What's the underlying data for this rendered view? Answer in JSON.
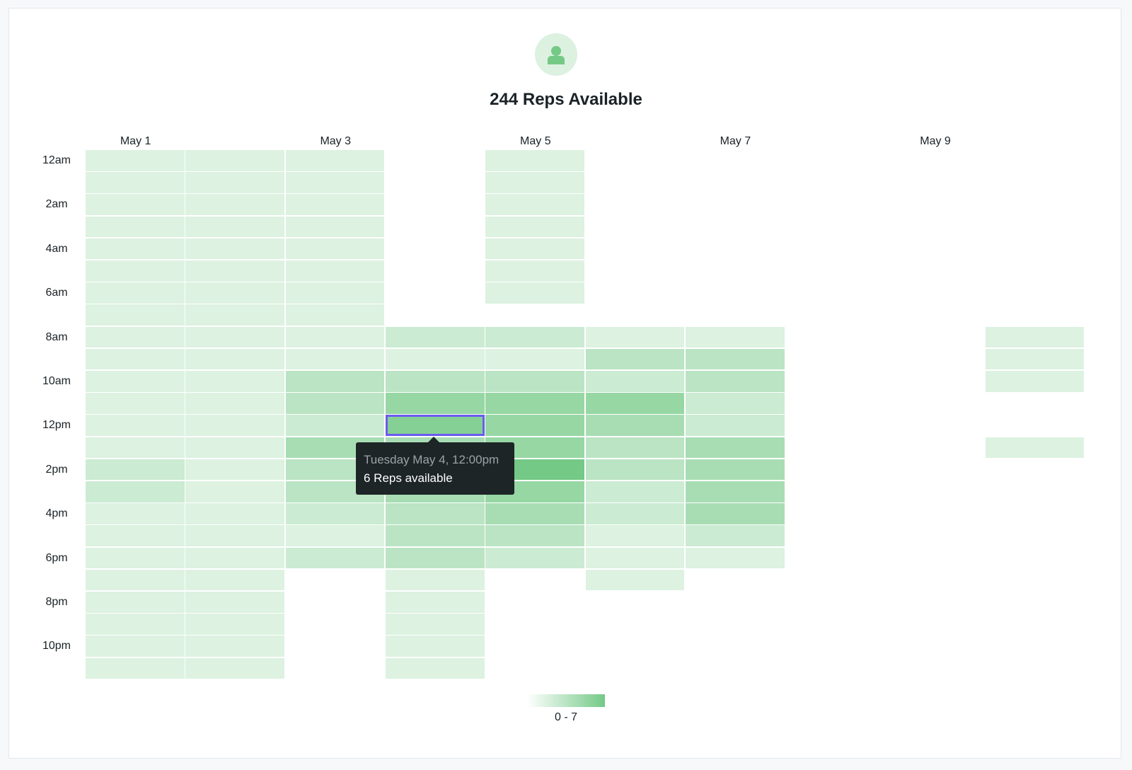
{
  "title": "244 Reps Available",
  "avatar_icon": "person-icon",
  "colors": {
    "accent": "#74c986",
    "highlight_border": "#6b5bf0",
    "tooltip_bg": "#1d2527"
  },
  "tooltip": {
    "line1": "Tuesday May 4, 12:00pm",
    "line2": "6 Reps available"
  },
  "legend": {
    "label": "0 - 7"
  },
  "chart_data": {
    "type": "heatmap",
    "title": "244 Reps Available",
    "x_tick_labels": [
      "May 1",
      "May 3",
      "May 5",
      "May 7",
      "May 9"
    ],
    "y_tick_labels": [
      "12am",
      "2am",
      "4am",
      "6am",
      "8am",
      "10am",
      "12pm",
      "2pm",
      "4pm",
      "6pm",
      "8pm",
      "10pm"
    ],
    "columns": [
      "May 1",
      "May 2",
      "May 3",
      "May 4",
      "May 5",
      "May 6",
      "May 7",
      "May 8",
      "May 9",
      "May 10"
    ],
    "rows": [
      "12am",
      "1am",
      "2am",
      "3am",
      "4am",
      "5am",
      "6am",
      "7am",
      "8am",
      "9am",
      "10am",
      "11am",
      "12pm",
      "1pm",
      "2pm",
      "3pm",
      "4pm",
      "5pm",
      "6pm",
      "7pm",
      "8pm",
      "9pm",
      "10pm",
      "11pm"
    ],
    "value_range": [
      0,
      7
    ],
    "highlighted_cell": {
      "column": "May 4",
      "row": "12pm",
      "value": 6
    },
    "values": [
      [
        1,
        1,
        1,
        null,
        1,
        null,
        null,
        null,
        null,
        null
      ],
      [
        1,
        1,
        1,
        null,
        1,
        null,
        null,
        null,
        null,
        null
      ],
      [
        1,
        1,
        1,
        null,
        1,
        null,
        null,
        null,
        null,
        null
      ],
      [
        1,
        1,
        1,
        null,
        1,
        null,
        null,
        null,
        null,
        null
      ],
      [
        1,
        1,
        1,
        null,
        1,
        null,
        null,
        null,
        null,
        null
      ],
      [
        1,
        1,
        1,
        null,
        1,
        null,
        null,
        null,
        null,
        null
      ],
      [
        1,
        1,
        1,
        null,
        1,
        null,
        null,
        null,
        null,
        null
      ],
      [
        1,
        1,
        1,
        null,
        null,
        null,
        null,
        null,
        null,
        null
      ],
      [
        1,
        1,
        1,
        2,
        2,
        1,
        1,
        null,
        null,
        1
      ],
      [
        1,
        1,
        1,
        1,
        1,
        3,
        3,
        null,
        null,
        1
      ],
      [
        1,
        1,
        3,
        3,
        3,
        2,
        3,
        null,
        null,
        1
      ],
      [
        1,
        1,
        3,
        5,
        5,
        5,
        2,
        null,
        null,
        null
      ],
      [
        1,
        1,
        2,
        6,
        5,
        4,
        2,
        null,
        null,
        null
      ],
      [
        1,
        1,
        4,
        4,
        5,
        3,
        4,
        null,
        null,
        1
      ],
      [
        2,
        1,
        3,
        5,
        7,
        3,
        4,
        null,
        null,
        null
      ],
      [
        2,
        1,
        3,
        4,
        5,
        2,
        4,
        null,
        null,
        null
      ],
      [
        1,
        1,
        2,
        3,
        4,
        2,
        4,
        null,
        null,
        null
      ],
      [
        1,
        1,
        1,
        3,
        3,
        1,
        2,
        null,
        null,
        null
      ],
      [
        1,
        1,
        2,
        3,
        2,
        1,
        1,
        null,
        null,
        null
      ],
      [
        1,
        1,
        null,
        1,
        null,
        1,
        null,
        null,
        null,
        null
      ],
      [
        1,
        1,
        null,
        1,
        null,
        null,
        null,
        null,
        null,
        null
      ],
      [
        1,
        1,
        null,
        1,
        null,
        null,
        null,
        null,
        null,
        null
      ],
      [
        1,
        1,
        null,
        1,
        null,
        null,
        null,
        null,
        null,
        null
      ],
      [
        1,
        1,
        null,
        1,
        null,
        null,
        null,
        null,
        null,
        null
      ]
    ]
  }
}
